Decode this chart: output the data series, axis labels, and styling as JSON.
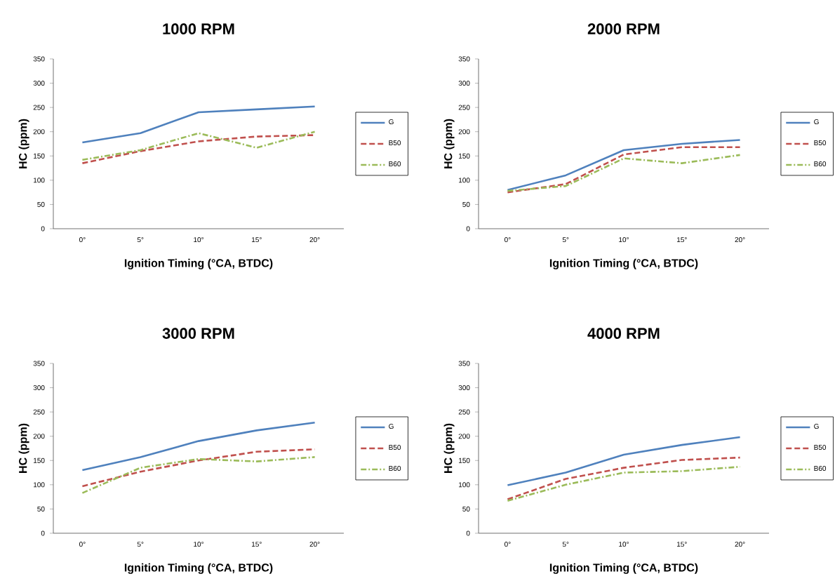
{
  "chart_data": [
    {
      "type": "line",
      "title": "1000 RPM",
      "xlabel": "Ignition Timing (°CA, BTDC)",
      "ylabel": "HC (ppm)",
      "categories": [
        "0°",
        "5°",
        "10°",
        "15°",
        "20°"
      ],
      "ylim": [
        0,
        350
      ],
      "yticks": [
        0,
        50,
        100,
        150,
        200,
        250,
        300,
        350
      ],
      "legend": "right",
      "series": [
        {
          "name": "G",
          "color": "#4f81bd",
          "line_style": "solid",
          "values": [
            178,
            197,
            240,
            246,
            252
          ]
        },
        {
          "name": "B50",
          "color": "#c0504d",
          "line_style": "dashed",
          "values": [
            135,
            160,
            180,
            190,
            193
          ]
        },
        {
          "name": "B60",
          "color": "#9bbb59",
          "line_style": "dashdot",
          "values": [
            142,
            162,
            197,
            167,
            200
          ]
        }
      ]
    },
    {
      "type": "line",
      "title": "2000 RPM",
      "xlabel": "Ignition Timing (°CA, BTDC)",
      "ylabel": "HC (ppm)",
      "categories": [
        "0°",
        "5°",
        "10°",
        "15°",
        "20°"
      ],
      "ylim": [
        0,
        350
      ],
      "yticks": [
        0,
        50,
        100,
        150,
        200,
        250,
        300,
        350
      ],
      "legend": "right",
      "series": [
        {
          "name": "G",
          "color": "#4f81bd",
          "line_style": "solid",
          "values": [
            80,
            110,
            162,
            175,
            183
          ]
        },
        {
          "name": "B50",
          "color": "#c0504d",
          "line_style": "dashed",
          "values": [
            75,
            92,
            153,
            168,
            168
          ]
        },
        {
          "name": "B60",
          "color": "#9bbb59",
          "line_style": "dashdot",
          "values": [
            78,
            88,
            145,
            135,
            152
          ]
        }
      ]
    },
    {
      "type": "line",
      "title": "3000 RPM",
      "xlabel": "Ignition Timing (°CA, BTDC)",
      "ylabel": "HC (ppm)",
      "categories": [
        "0°",
        "5°",
        "10°",
        "15°",
        "20°"
      ],
      "ylim": [
        0,
        350
      ],
      "yticks": [
        0,
        50,
        100,
        150,
        200,
        250,
        300,
        350
      ],
      "legend": "right",
      "series": [
        {
          "name": "G",
          "color": "#4f81bd",
          "line_style": "solid",
          "values": [
            130,
            157,
            190,
            212,
            228
          ]
        },
        {
          "name": "B50",
          "color": "#c0504d",
          "line_style": "dashed",
          "values": [
            97,
            127,
            150,
            168,
            173
          ]
        },
        {
          "name": "B60",
          "color": "#9bbb59",
          "line_style": "dashdot",
          "values": [
            83,
            135,
            153,
            148,
            157
          ]
        }
      ]
    },
    {
      "type": "line",
      "title": "4000 RPM",
      "xlabel": "Ignition Timing (°CA, BTDC)",
      "ylabel": "HC (ppm)",
      "categories": [
        "0°",
        "5°",
        "10°",
        "15°",
        "20°"
      ],
      "ylim": [
        0,
        350
      ],
      "yticks": [
        0,
        50,
        100,
        150,
        200,
        250,
        300,
        350
      ],
      "legend": "right",
      "series": [
        {
          "name": "G",
          "color": "#4f81bd",
          "line_style": "solid",
          "values": [
            99,
            125,
            162,
            182,
            198
          ]
        },
        {
          "name": "B50",
          "color": "#c0504d",
          "line_style": "dashed",
          "values": [
            70,
            112,
            135,
            151,
            156
          ]
        },
        {
          "name": "B60",
          "color": "#9bbb59",
          "line_style": "dashdot",
          "values": [
            67,
            100,
            125,
            128,
            137
          ]
        }
      ]
    }
  ]
}
